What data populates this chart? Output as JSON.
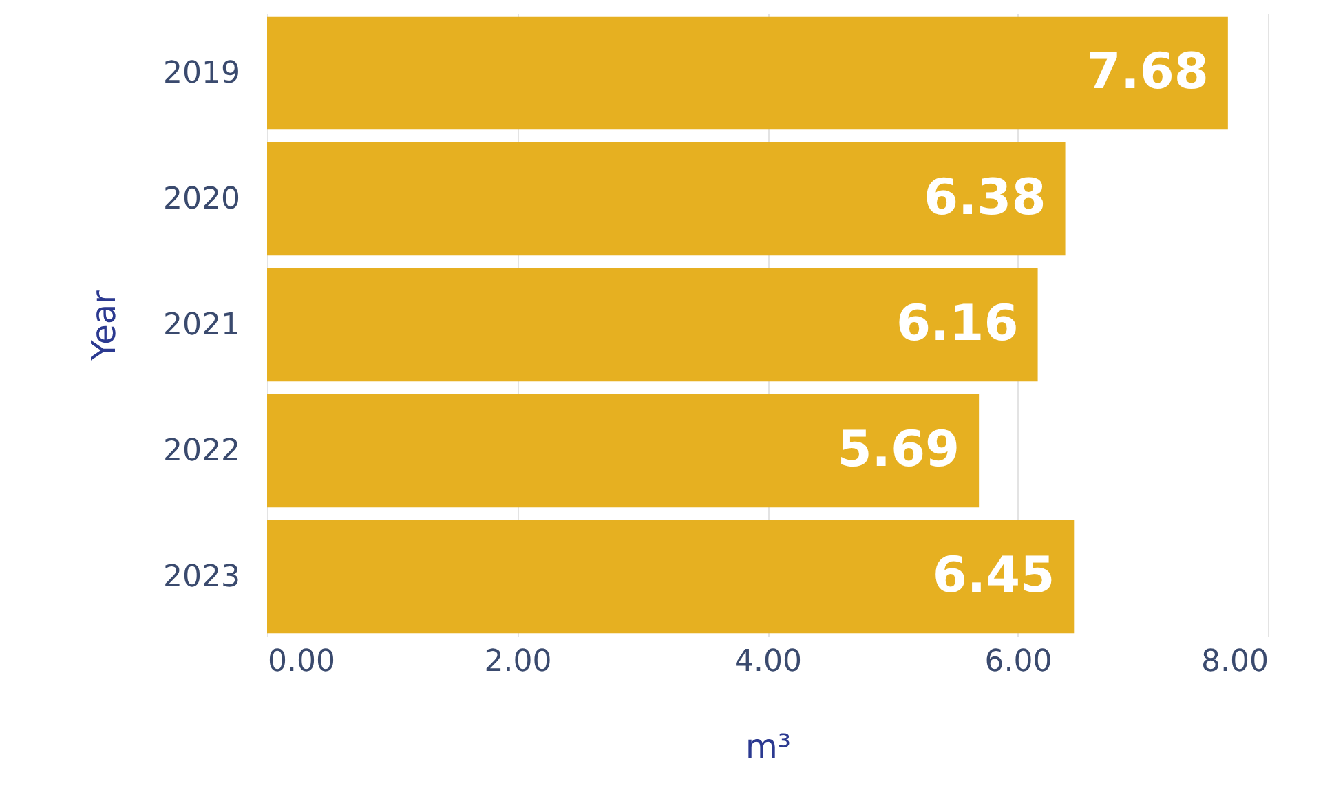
{
  "chart_data": {
    "type": "bar",
    "orientation": "horizontal",
    "xlabel": "m³",
    "ylabel": "Year",
    "categories": [
      "2019",
      "2020",
      "2021",
      "2022",
      "2023"
    ],
    "values": [
      7.68,
      6.38,
      6.16,
      5.69,
      6.45
    ],
    "color": "#e6b021",
    "xlim": [
      0,
      8
    ],
    "xticks": [
      {
        "value": 0,
        "label": "0.00"
      },
      {
        "value": 2,
        "label": "2.00"
      },
      {
        "value": 4,
        "label": "4.00"
      },
      {
        "value": 6,
        "label": "6.00"
      },
      {
        "value": 8,
        "label": "8.00"
      }
    ],
    "grid": "x",
    "data_labels": true
  }
}
